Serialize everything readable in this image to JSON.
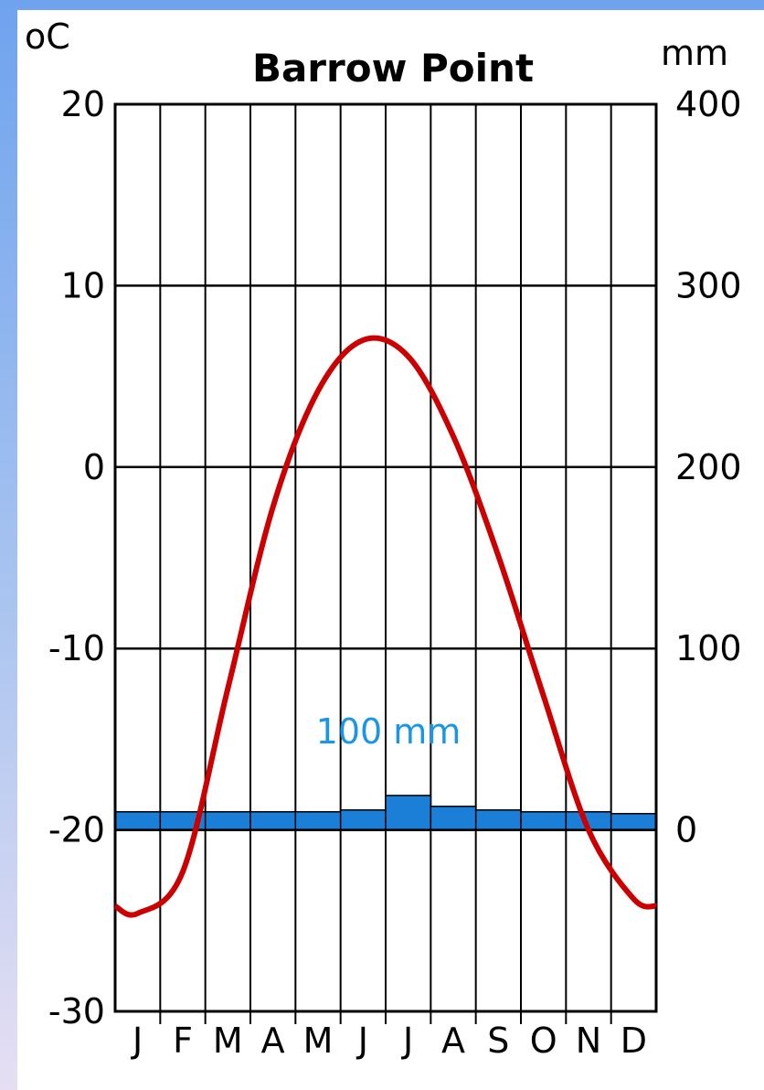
{
  "chart_data": {
    "type": "bar",
    "title": "Barrow Point",
    "y_left_unit": "oC",
    "y_right_unit": "mm",
    "y_left_ticks": [
      20,
      10,
      0,
      -10,
      -20,
      -30
    ],
    "y_right_ticks": [
      400,
      300,
      200,
      100,
      0
    ],
    "ylim_left": [
      -30,
      20
    ],
    "ylim_right": [
      -100,
      400
    ],
    "categories": [
      "J",
      "F",
      "M",
      "A",
      "M",
      "J",
      "J",
      "A",
      "S",
      "O",
      "N",
      "D"
    ],
    "series": [
      {
        "kind": "bar",
        "axis": "right",
        "color": "#1b7fd8",
        "values": [
          10,
          10,
          10,
          10,
          10,
          11,
          19,
          13,
          11,
          10,
          10,
          9
        ]
      },
      {
        "kind": "line",
        "axis": "left",
        "color": "#cc0000",
        "values": [
          -24.6,
          -22.3,
          -12.2,
          -2.2,
          4.2,
          7.0,
          6.1,
          1.7,
          -4.9,
          -12.6,
          -20.0,
          -23.8
        ]
      }
    ],
    "annotation": "100 mm",
    "grid": true
  }
}
